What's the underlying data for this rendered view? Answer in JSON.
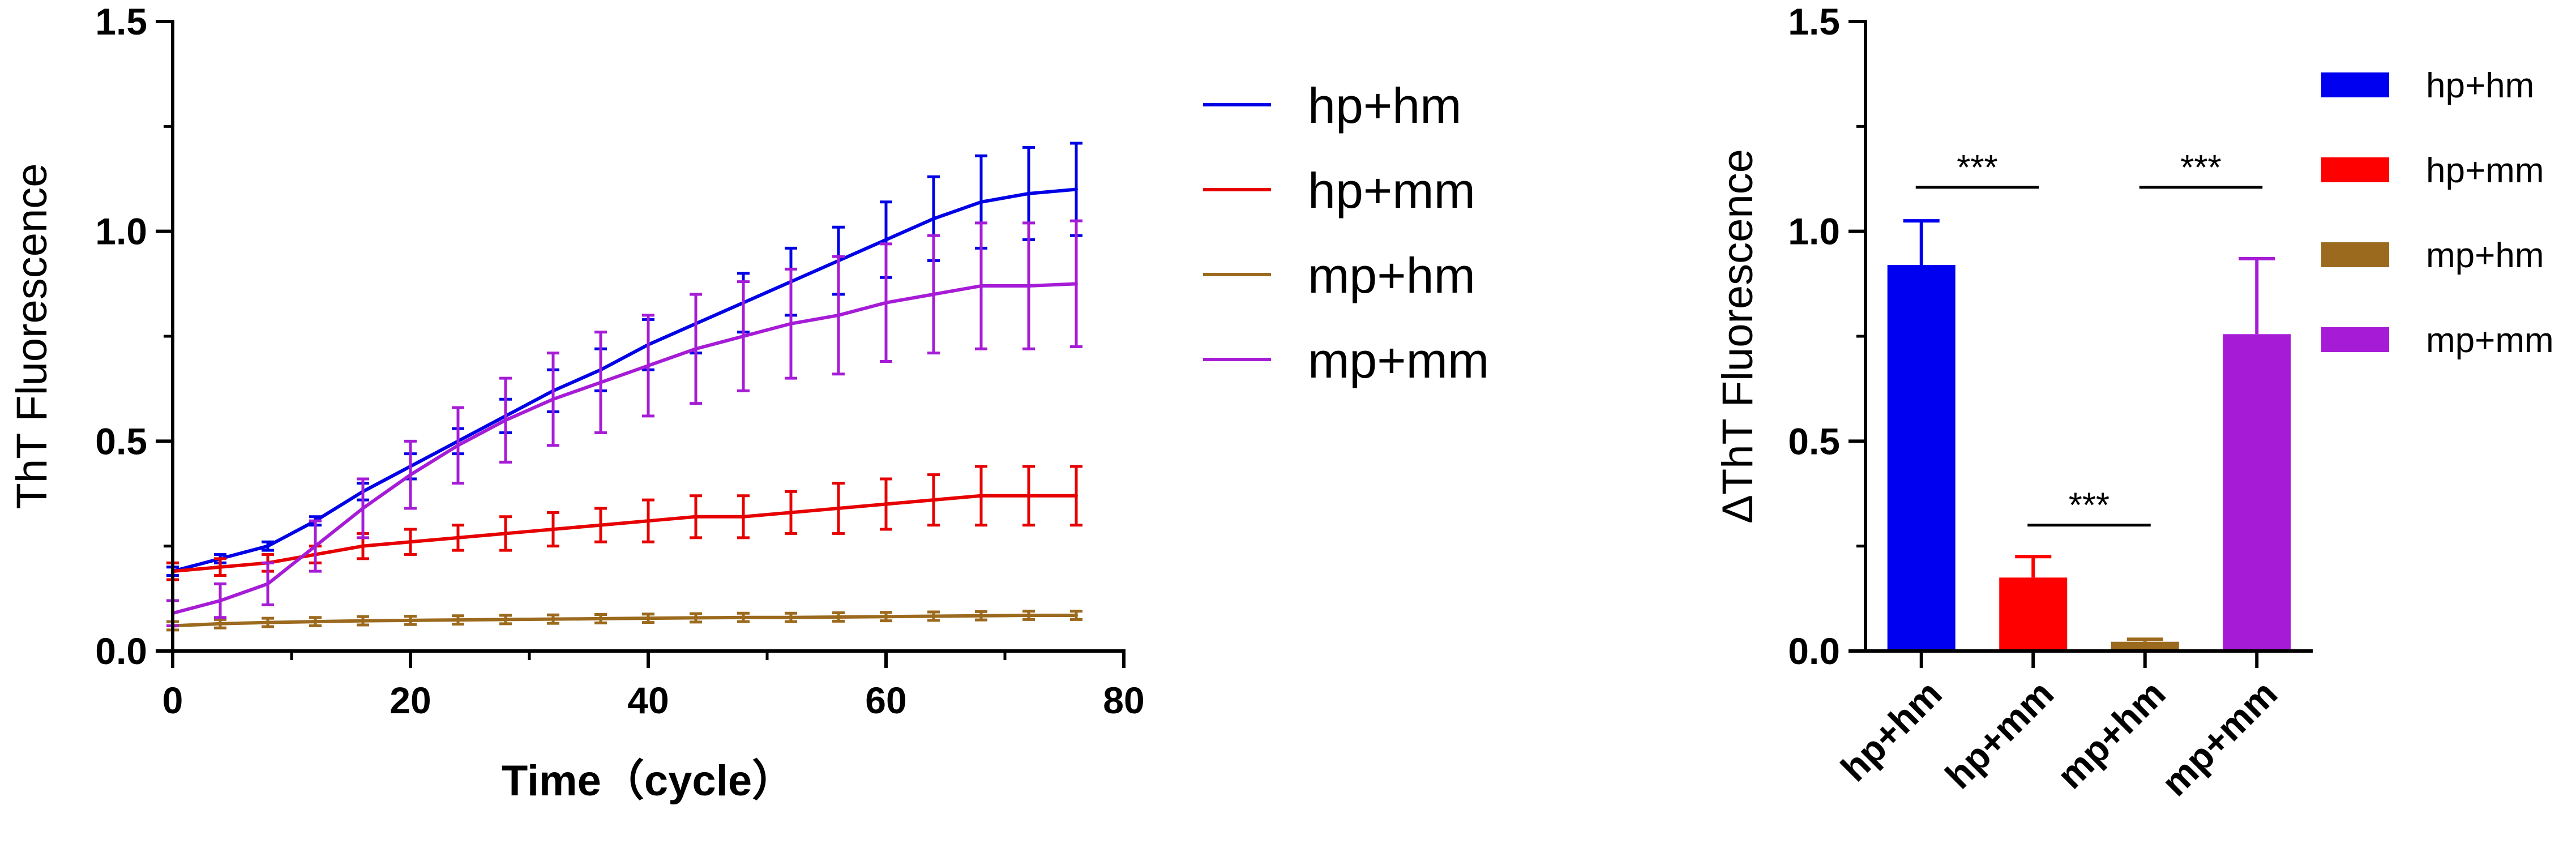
{
  "chart_data": [
    {
      "type": "line",
      "title": "",
      "xlabel": "Time（cycle）",
      "ylabel": "ThT Fluorescence",
      "xlim": [
        0,
        80
      ],
      "ylim": [
        0,
        1.5
      ],
      "x_ticks": [
        "0",
        "20",
        "40",
        "60",
        "80"
      ],
      "y_ticks": [
        "0.0",
        "0.5",
        "1.0",
        "1.5"
      ],
      "x": [
        0,
        4,
        8,
        12,
        16,
        20,
        24,
        28,
        32,
        36,
        40,
        44,
        48,
        52,
        56,
        60,
        64,
        68,
        72,
        76
      ],
      "legend_position": "right",
      "series": [
        {
          "name": "hp+hm",
          "color": "#0000e6",
          "values": [
            0.19,
            0.22,
            0.25,
            0.31,
            0.38,
            0.44,
            0.5,
            0.56,
            0.62,
            0.67,
            0.73,
            0.78,
            0.83,
            0.88,
            0.93,
            0.98,
            1.03,
            1.07,
            1.09,
            1.1
          ],
          "errors": [
            0.01,
            0.01,
            0.01,
            0.01,
            0.02,
            0.03,
            0.03,
            0.04,
            0.05,
            0.05,
            0.06,
            0.07,
            0.07,
            0.08,
            0.08,
            0.09,
            0.1,
            0.11,
            0.11,
            0.11
          ]
        },
        {
          "name": "hp+mm",
          "color": "#e60000",
          "values": [
            0.19,
            0.2,
            0.21,
            0.23,
            0.25,
            0.26,
            0.27,
            0.28,
            0.29,
            0.3,
            0.31,
            0.32,
            0.32,
            0.33,
            0.34,
            0.35,
            0.36,
            0.37,
            0.37,
            0.37
          ],
          "errors": [
            0.02,
            0.02,
            0.02,
            0.02,
            0.03,
            0.03,
            0.03,
            0.04,
            0.04,
            0.04,
            0.05,
            0.05,
            0.05,
            0.05,
            0.06,
            0.06,
            0.06,
            0.07,
            0.07,
            0.07
          ]
        },
        {
          "name": "mp+hm",
          "color": "#9b6a1e",
          "values": [
            0.06,
            0.065,
            0.068,
            0.07,
            0.072,
            0.073,
            0.074,
            0.075,
            0.076,
            0.077,
            0.078,
            0.079,
            0.08,
            0.08,
            0.081,
            0.082,
            0.083,
            0.084,
            0.085,
            0.085
          ],
          "errors": [
            0.01,
            0.01,
            0.01,
            0.01,
            0.01,
            0.01,
            0.01,
            0.01,
            0.01,
            0.01,
            0.01,
            0.01,
            0.01,
            0.01,
            0.01,
            0.01,
            0.01,
            0.01,
            0.01,
            0.01
          ]
        },
        {
          "name": "mp+mm",
          "color": "#a61cd6",
          "values": [
            0.09,
            0.12,
            0.16,
            0.25,
            0.34,
            0.42,
            0.49,
            0.55,
            0.6,
            0.64,
            0.68,
            0.72,
            0.75,
            0.78,
            0.8,
            0.83,
            0.85,
            0.87,
            0.87,
            0.875
          ],
          "errors": [
            0.03,
            0.04,
            0.05,
            0.06,
            0.07,
            0.08,
            0.09,
            0.1,
            0.11,
            0.12,
            0.12,
            0.13,
            0.13,
            0.13,
            0.14,
            0.14,
            0.14,
            0.15,
            0.15,
            0.15
          ]
        }
      ]
    },
    {
      "type": "bar",
      "title": "",
      "xlabel": "",
      "ylabel": "ΔThT Fluorescence",
      "ylim": [
        0,
        1.5
      ],
      "y_ticks": [
        "0.0",
        "0.5",
        "1.0",
        "1.5"
      ],
      "categories": [
        "hp+hm",
        "hp+mm",
        "mp+hm",
        "mp+mm"
      ],
      "values": [
        0.92,
        0.175,
        0.022,
        0.755
      ],
      "errors": [
        0.105,
        0.05,
        0.006,
        0.18
      ],
      "colors": [
        "#0000f0",
        "#ff0000",
        "#9b6a1e",
        "#a61cd6"
      ],
      "legend_position": "right",
      "significance": [
        {
          "from": 0,
          "to": 1,
          "label": "***",
          "y": 1.105
        },
        {
          "from": 1,
          "to": 2,
          "label": "***",
          "y": 0.3
        },
        {
          "from": 2,
          "to": 3,
          "label": "***",
          "y": 1.105
        }
      ]
    }
  ]
}
